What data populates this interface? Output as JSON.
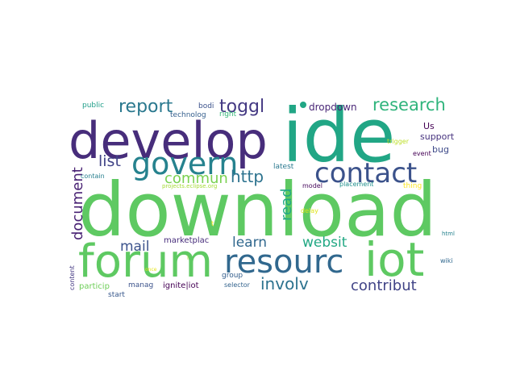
{
  "words": [
    {
      "text": "download",
      "color": "#5ec962"
    },
    {
      "text": "ide",
      "color": "#21a685"
    },
    {
      "text": "develop",
      "color": "#472d7b"
    },
    {
      "text": "forum",
      "color": "#5ec962"
    },
    {
      "text": "resourc",
      "color": "#31688e"
    },
    {
      "text": "iot",
      "color": "#5ec962"
    },
    {
      "text": "govern",
      "color": "#26828e"
    },
    {
      "text": "contact",
      "color": "#3b528b"
    },
    {
      "text": "report",
      "color": "#2a788e"
    },
    {
      "text": "toggl",
      "color": "#443983"
    },
    {
      "text": "research",
      "color": "#2fb47c"
    },
    {
      "text": "dropdown",
      "color": "#482576"
    },
    {
      "text": "list",
      "color": "#414487"
    },
    {
      "text": "commun",
      "color": "#7ad151"
    },
    {
      "text": "http",
      "color": "#2c728e"
    },
    {
      "text": "document",
      "color": "#482173"
    },
    {
      "text": "read",
      "color": "#22a884"
    },
    {
      "text": "mail",
      "color": "#3b528b"
    },
    {
      "text": "learn",
      "color": "#31688e"
    },
    {
      "text": "websit",
      "color": "#22a884"
    },
    {
      "text": "involv",
      "color": "#2c728e"
    },
    {
      "text": "contribut",
      "color": "#414487"
    },
    {
      "text": "Us",
      "color": "#440154"
    },
    {
      "text": "support",
      "color": "#46327e"
    },
    {
      "text": "bug",
      "color": "#3e4a89"
    },
    {
      "text": "public",
      "color": "#1f9e89"
    },
    {
      "text": "bodi",
      "color": "#3b528b"
    },
    {
      "text": "technolog",
      "color": "#355f8d"
    },
    {
      "text": "right",
      "color": "#35b779"
    },
    {
      "text": "trigger",
      "color": "#bddf26"
    },
    {
      "text": "event",
      "color": "#440154"
    },
    {
      "text": "contain",
      "color": "#277f8e"
    },
    {
      "text": "latest",
      "color": "#2a788e"
    },
    {
      "text": "projects.eclipse.org",
      "color": "#a5db36"
    },
    {
      "text": "model",
      "color": "#46085c"
    },
    {
      "text": "placement",
      "color": "#21918c"
    },
    {
      "text": "thing",
      "color": "#fde725"
    },
    {
      "text": "delay",
      "color": "#dfe318"
    },
    {
      "text": "marketplac",
      "color": "#472d7b"
    },
    {
      "text": "group",
      "color": "#355f8d"
    },
    {
      "text": "wiki",
      "color": "#31688e"
    },
    {
      "text": "content",
      "color": "#443983"
    },
    {
      "text": "particip",
      "color": "#6ece58"
    },
    {
      "text": "manag",
      "color": "#3b528b"
    },
    {
      "text": "ignite|iot",
      "color": "#440154"
    },
    {
      "text": "selector",
      "color": "#33638d"
    },
    {
      "text": "start",
      "color": "#38588c"
    },
    {
      "text": "html",
      "color": "#26828e"
    },
    {
      "text": "once",
      "color": "#e5e419"
    },
    {
      "text": "i",
      "color": "#a8db34"
    },
    {
      "text": "t",
      "color": "#fde725"
    }
  ]
}
